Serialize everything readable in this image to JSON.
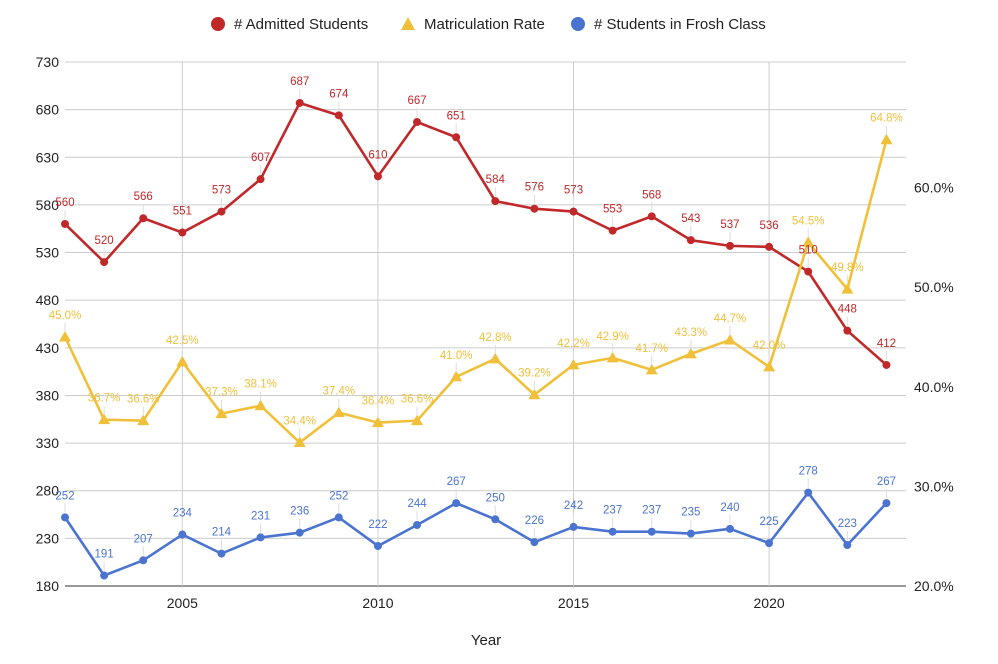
{
  "chart_data": {
    "type": "line",
    "title": "",
    "xlabel": "Year",
    "x": [
      2002,
      2003,
      2004,
      2005,
      2006,
      2007,
      2008,
      2009,
      2010,
      2011,
      2012,
      2013,
      2014,
      2015,
      2016,
      2017,
      2018,
      2019,
      2020,
      2021,
      2022,
      2023
    ],
    "xticks": [
      "2005",
      "2010",
      "2015",
      "2020"
    ],
    "left_axis": {
      "ylim": [
        180,
        730
      ],
      "ticks": [
        "180",
        "230",
        "280",
        "330",
        "380",
        "430",
        "480",
        "530",
        "580",
        "630",
        "680",
        "730"
      ]
    },
    "right_axis": {
      "ylim": [
        20,
        72.6
      ],
      "ticks": [
        "20.0%",
        "30.0%",
        "40.0%",
        "50.0%",
        "60.0%"
      ]
    },
    "legend_position": "top",
    "grid": true,
    "series": [
      {
        "name": "# Admitted Students",
        "axis": "left",
        "color": "#c0282a",
        "marker": "circle",
        "values": [
          560,
          520,
          566,
          551,
          573,
          607,
          687,
          674,
          610,
          667,
          651,
          584,
          576,
          573,
          553,
          568,
          543,
          537,
          536,
          510,
          448,
          412
        ],
        "labels": [
          "560",
          "520",
          "566",
          "551",
          "573",
          "607",
          "687",
          "674",
          "610",
          "667",
          "651",
          "584",
          "576",
          "573",
          "553",
          "568",
          "543",
          "537",
          "536",
          "510",
          "448",
          "412"
        ]
      },
      {
        "name": "Matriculation Rate",
        "axis": "right",
        "color": "#f0c03a",
        "marker": "triangle",
        "values": [
          45.0,
          36.7,
          36.6,
          42.5,
          37.3,
          38.1,
          34.4,
          37.4,
          36.4,
          36.6,
          41.0,
          42.8,
          39.2,
          42.2,
          42.9,
          41.7,
          43.3,
          44.7,
          42.0,
          54.5,
          49.8,
          64.8
        ],
        "labels": [
          "45.0%",
          "36.7%",
          "36.6%",
          "42.5%",
          "37.3%",
          "38.1%",
          "34.4%",
          "37.4%",
          "36.4%",
          "36.6%",
          "41.0%",
          "42.8%",
          "39.2%",
          "42.2%",
          "42.9%",
          "41.7%",
          "43.3%",
          "44.7%",
          "42.0%",
          "54.5%",
          "49.8%",
          "64.8%"
        ]
      },
      {
        "name": "# Students in Frosh Class",
        "axis": "left",
        "color": "#4a74d0",
        "marker": "circle",
        "values": [
          252,
          191,
          207,
          234,
          214,
          231,
          236,
          252,
          222,
          244,
          267,
          250,
          226,
          242,
          237,
          237,
          235,
          240,
          225,
          278,
          223,
          267
        ],
        "labels": [
          "252",
          "191",
          "207",
          "234",
          "214",
          "231",
          "236",
          "252",
          "222",
          "244",
          "267",
          "250",
          "226",
          "242",
          "237",
          "237",
          "235",
          "240",
          "225",
          "278",
          "223",
          "267"
        ]
      }
    ]
  }
}
